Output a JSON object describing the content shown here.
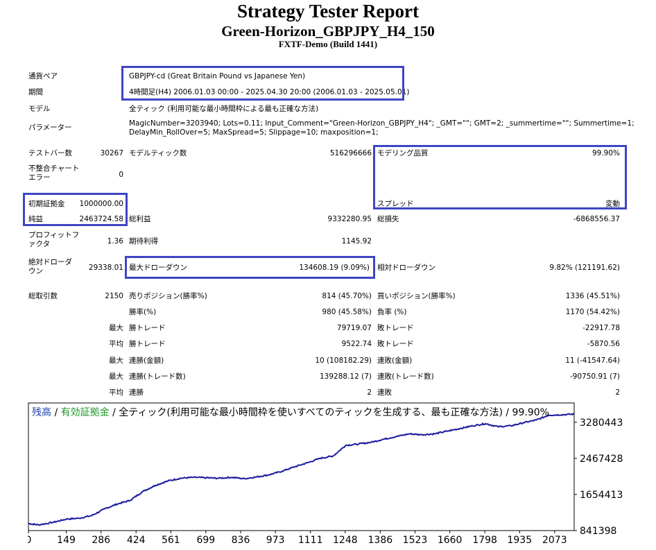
{
  "header": {
    "title": "Strategy Tester Report",
    "subtitle": "Green-Horizon_GBPJPY_H4_150",
    "server": "FXTF-Demo (Build 1441)"
  },
  "info": {
    "symbol_label": "通貨ペア",
    "symbol_value": "GBPJPY-cd (Great Britain Pound vs Japanese Yen)",
    "period_label": "期間",
    "period_value": "4時間足(H4) 2006.01.03 00:00 - 2025.04.30 20:00 (2006.01.03 - 2025.05.01)",
    "model_label": "モデル",
    "model_value": "全ティック (利用可能な最小時間枠による最も正確な方法)",
    "params_label": "パラメーター",
    "params_value_1": "MagicNumber=3203940; Lots=0.11; Input_Comment=\"Green-Horizon_GBPJPY_H4\"; _GMT=\"\"; GMT=2; _summertime=\"\"; Summertime=1;",
    "params_value_2": "DelayMin_RollOver=5; MaxSpread=5; Slippage=10; maxposition=1;"
  },
  "stats": {
    "bars_label": "テストバー数",
    "bars_value": "30267",
    "ticks_label": "モデルティック数",
    "ticks_value": "516296666",
    "quality_label": "モデリング品質",
    "quality_value": "99.90%",
    "mismatch_label": "不整合チャートエラー",
    "mismatch_value": "0",
    "spread_label": "スプレッド",
    "spread_value": "変動",
    "deposit_label": "初期証拠金",
    "deposit_value": "1000000.00",
    "net_label": "純益",
    "net_value": "2463724.58",
    "gross_profit_label": "総利益",
    "gross_profit_value": "9332280.95",
    "gross_loss_label": "総損失",
    "gross_loss_value": "-6868556.37",
    "pf_label": "プロフィットファクタ",
    "pf_value": "1.36",
    "expected_label": "期待利得",
    "expected_value": "1145.92",
    "abs_dd_label": "絶対ドローダウン",
    "abs_dd_value": "29338.01",
    "max_dd_label": "最大ドローダウン",
    "max_dd_value": "134608.19 (9.09%)",
    "rel_dd_label": "相対ドローダウン",
    "rel_dd_value": "9.82% (121191.62)",
    "trades_label": "総取引数",
    "trades_value": "2150",
    "short_label": "売りポジション(勝率%)",
    "short_value": "814 (45.70%)",
    "long_label": "買いポジション(勝率%)",
    "long_value": "1336 (45.51%)",
    "win_label": "勝率(%)",
    "win_value": "980 (45.58%)",
    "loss_label": "負率 (%)",
    "loss_value": "1170 (54.42%)",
    "max_word": "最大",
    "avg_word": "平均",
    "best_label": "勝トレード",
    "best_value": "79719.07",
    "worst_label": "敗トレード",
    "worst_value": "-22917.78",
    "avg_win_label": "勝トレード",
    "avg_win_value": "9522.74",
    "avg_loss_label": "敗トレード",
    "avg_loss_value": "-5870.56",
    "cons_win_amt_label": "連勝(金額)",
    "cons_win_amt_value": "10 (108182.29)",
    "cons_loss_amt_label": "連敗(金額)",
    "cons_loss_amt_value": "11 (-41547.64)",
    "cons_win_cnt_label": "連勝(トレード数)",
    "cons_win_cnt_value": "139288.12 (7)",
    "cons_loss_cnt_label": "連敗(トレード数)",
    "cons_loss_cnt_value": "-90750.91 (7)",
    "avg_cons_win_label": "連勝",
    "avg_cons_win_value": "2",
    "avg_cons_loss_label": "連敗",
    "avg_cons_loss_value": "2"
  },
  "chart_legend": {
    "balance": "残高",
    "sep1": " / ",
    "equity": "有効証拠金",
    "rest": " / 全ティック(利用可能な最小時間枠を使いすべてのティックを生成する、最も正確な方法) / 99.90%"
  },
  "chart_data": {
    "type": "line",
    "x_ticks": [
      "0",
      "149",
      "286",
      "424",
      "561",
      "699",
      "836",
      "973",
      "1111",
      "1248",
      "1386",
      "1523",
      "1660",
      "1798",
      "1935",
      "2073"
    ],
    "y_ticks": [
      "3280443",
      "2467428",
      "1654413",
      "841398"
    ],
    "xlim": [
      0,
      2150
    ],
    "ylim": [
      841398,
      3715000
    ],
    "series": [
      {
        "color": "#1a1aa0",
        "x": [
          0,
          40,
          100,
          150,
          200,
          250,
          300,
          350,
          400,
          450,
          500,
          550,
          600,
          650,
          700,
          750,
          800,
          850,
          900,
          950,
          1000,
          1050,
          1100,
          1150,
          1200,
          1250,
          1300,
          1350,
          1400,
          1450,
          1500,
          1550,
          1600,
          1650,
          1700,
          1750,
          1800,
          1850,
          1900,
          1950,
          2000,
          2050,
          2100,
          2150
        ],
        "y": [
          1000000,
          970000,
          1030000,
          1100000,
          1120000,
          1180000,
          1330000,
          1440000,
          1520000,
          1720000,
          1860000,
          1960000,
          2020000,
          2040000,
          2030000,
          2020000,
          2040000,
          2010000,
          2050000,
          2100000,
          2180000,
          2280000,
          2370000,
          2470000,
          2520000,
          2760000,
          2790000,
          2830000,
          2900000,
          2960000,
          3020000,
          3000000,
          3020000,
          3080000,
          3140000,
          3200000,
          3250000,
          3180000,
          3200000,
          3270000,
          3330000,
          3440000,
          3450000,
          3464000
        ]
      }
    ]
  }
}
